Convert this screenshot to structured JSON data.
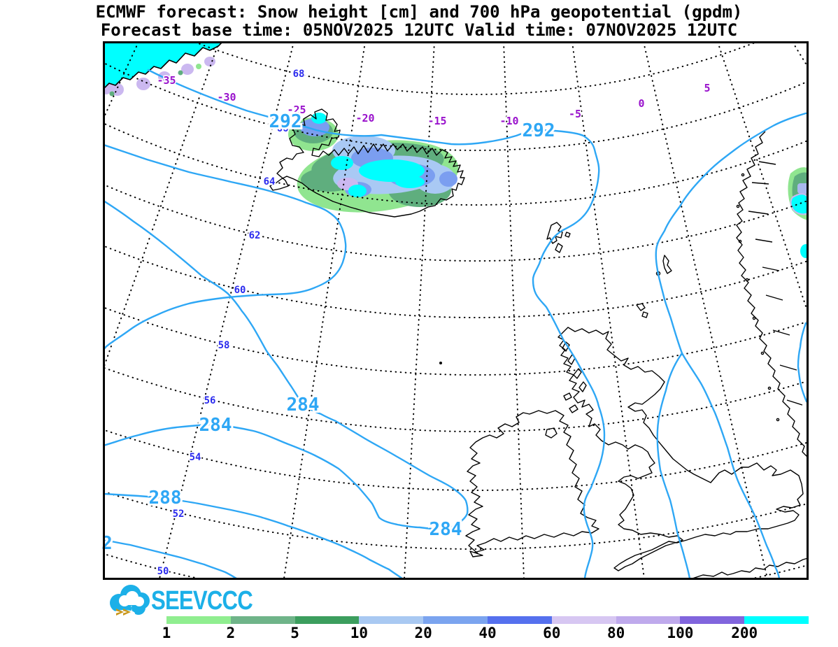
{
  "title": {
    "line1": "ECMWF forecast: Snow height [cm] and 700 hPa geopotential (gpdm)",
    "line2": "Forecast base time: 05NOV2025 12UTC   Valid time: 07NOV2025 12UTC"
  },
  "logo": {
    "text": "SEEVCCC"
  },
  "map": {
    "lon_labels": [
      {
        "text": "-35"
      },
      {
        "text": "-30"
      },
      {
        "text": "-25"
      },
      {
        "text": "-20"
      },
      {
        "text": "-15"
      },
      {
        "text": "-10"
      },
      {
        "text": "-5"
      },
      {
        "text": "0"
      },
      {
        "text": "5"
      }
    ],
    "lat_labels": [
      {
        "text": "68"
      },
      {
        "text": "66"
      },
      {
        "text": "64"
      },
      {
        "text": "62"
      },
      {
        "text": "60"
      },
      {
        "text": "58"
      },
      {
        "text": "56"
      },
      {
        "text": "54"
      },
      {
        "text": "52"
      },
      {
        "text": "50"
      }
    ],
    "contour_labels": [
      {
        "text": "292"
      },
      {
        "text": "292"
      },
      {
        "text": "284"
      },
      {
        "text": "284"
      },
      {
        "text": "284"
      },
      {
        "text": "288"
      },
      {
        "text": "2"
      }
    ]
  },
  "chart_data": {
    "type": "heatmap",
    "subtype": "meteorological contour map with filled snow-height shading",
    "title": "ECMWF forecast: Snow height [cm] and 700 hPa geopotential (gpdm)",
    "forecast_base_time": "05NOV2025 12UTC",
    "valid_time": "07NOV2025 12UTC",
    "variables": [
      {
        "name": "Snow height",
        "unit": "cm",
        "rendering": "filled color shading"
      },
      {
        "name": "700 hPa geopotential",
        "unit": "gpdm",
        "rendering": "light-blue contour lines"
      }
    ],
    "geopotential_contour_values_gpdm": [
      284,
      288,
      292
    ],
    "longitude_gridlines_deg": [
      -35,
      -30,
      -25,
      -20,
      -15,
      -10,
      -5,
      0,
      5
    ],
    "latitude_gridlines_deg": [
      68,
      66,
      64,
      62,
      60,
      58,
      56,
      54,
      52,
      50
    ],
    "snow_covered_areas": [
      "East Greenland coast",
      "Iceland",
      "western Norway"
    ],
    "legend": {
      "levels": [
        "1",
        "2",
        "5",
        "10",
        "20",
        "40",
        "60",
        "80",
        "100",
        "200"
      ],
      "colors": [
        "#90ee90",
        "#6fb489",
        "#3c9e5e",
        "#a9c9f2",
        "#7ba4ef",
        "#5570ee",
        "#d7c7f2",
        "#bfaaec",
        "#8165dd",
        "#00ffff"
      ]
    },
    "layout": {
      "grid": "dotted graticule",
      "legend_position": "bottom",
      "frame": "black border"
    }
  },
  "colors": {
    "contour_blue": "#2ea7f5",
    "lat_label_blue": "#2b2bee",
    "lon_label_purple": "#9912cc",
    "snow_max_cyan": "#00ffff",
    "logo_blue": "#1cb0e8",
    "logo_gold": "#c9971c"
  }
}
